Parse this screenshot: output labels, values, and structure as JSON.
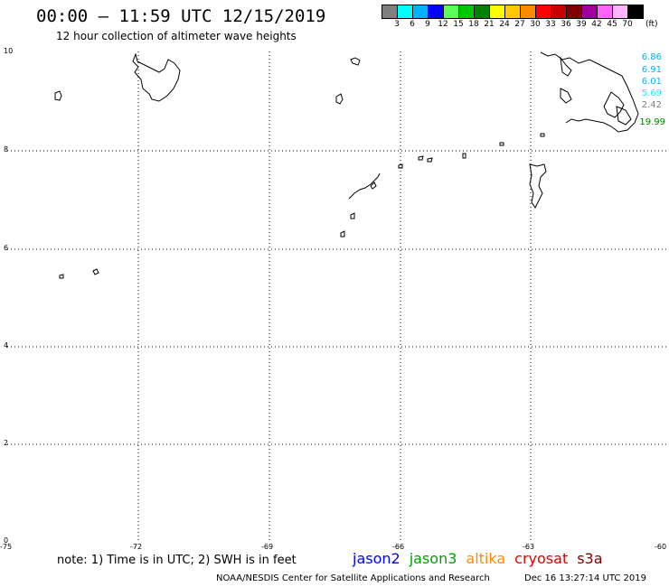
{
  "header": {
    "title": "00:00 – 11:59 UTC 12/15/2019",
    "subtitle": "12 hour collection of altimeter wave heights"
  },
  "scale": {
    "colors": [
      "#7f7f7f",
      "#00ffff",
      "#00b2ff",
      "#0000ff",
      "#5aff5a",
      "#00c800",
      "#008000",
      "#ffff00",
      "#ffc800",
      "#ff8c00",
      "#ff0000",
      "#c80000",
      "#800000",
      "#a000a0",
      "#ff64ff",
      "#ffb4ff",
      "#000000"
    ],
    "labels": [
      "3",
      "6",
      "9",
      "12",
      "15",
      "18",
      "21",
      "24",
      "27",
      "30",
      "33",
      "36",
      "39",
      "42",
      "45",
      "70"
    ],
    "unit": "(ft)"
  },
  "map": {
    "y_ticks": [
      "10",
      "8",
      "6",
      "4",
      "2",
      "0"
    ],
    "x_ticks": [
      "-75",
      "-72",
      "-69",
      "-66",
      "-63",
      "-60"
    ],
    "wave_values": [
      {
        "text": "6.86",
        "color": "#00b2ff"
      },
      {
        "text": "6.91",
        "color": "#00b2ff"
      },
      {
        "text": "6.01",
        "color": "#00b2ff"
      },
      {
        "text": "5.69",
        "color": "#00ffff"
      },
      {
        "text": "2.42",
        "color": "#7f7f7f"
      },
      {
        "text": "19.99",
        "color": "#008000"
      }
    ]
  },
  "footer": {
    "note": "note: 1) Time is in UTC; 2) SWH is in feet",
    "satellites": [
      {
        "name": "jason2",
        "color": "#0000ff"
      },
      {
        "name": "jason3",
        "color": "#00a000"
      },
      {
        "name": "altika",
        "color": "#ff8c00"
      },
      {
        "name": "cryosat",
        "color": "#e00000"
      },
      {
        "name": "s3a",
        "color": "#800000"
      }
    ],
    "credit": "NOAA/NESDIS Center for Satellite Applications and Research",
    "timestamp": "Dec 16 13:27:14 UTC 2019"
  }
}
